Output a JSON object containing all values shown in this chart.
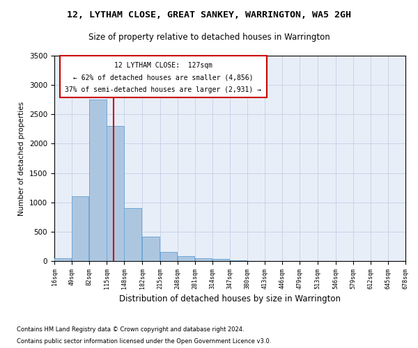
{
  "title": "12, LYTHAM CLOSE, GREAT SANKEY, WARRINGTON, WA5 2GH",
  "subtitle": "Size of property relative to detached houses in Warrington",
  "xlabel": "Distribution of detached houses by size in Warrington",
  "ylabel": "Number of detached properties",
  "footnote1": "Contains HM Land Registry data © Crown copyright and database right 2024.",
  "footnote2": "Contains public sector information licensed under the Open Government Licence v3.0.",
  "bar_color": "#adc6e0",
  "bar_edge_color": "#6ea8d8",
  "grid_color": "#c8d4e8",
  "background_color": "#e8eef8",
  "annotation_box_color": "#ffffff",
  "annotation_border_color": "#cc0000",
  "red_line_color": "#cc0000",
  "property_size": 127,
  "annotation_text_line1": "12 LYTHAM CLOSE:  127sqm",
  "annotation_text_line2": "← 62% of detached houses are smaller (4,856)",
  "annotation_text_line3": "37% of semi-detached houses are larger (2,931) →",
  "bins": [
    16,
    49,
    82,
    115,
    148,
    182,
    215,
    248,
    281,
    314,
    347,
    380,
    413,
    446,
    479,
    513,
    546,
    579,
    612,
    645,
    678
  ],
  "counts": [
    50,
    1100,
    2750,
    2300,
    900,
    420,
    150,
    80,
    50,
    35,
    10,
    0,
    0,
    0,
    0,
    0,
    0,
    0,
    0,
    0
  ],
  "ylim": [
    0,
    3500
  ],
  "yticks": [
    0,
    500,
    1000,
    1500,
    2000,
    2500,
    3000,
    3500
  ]
}
